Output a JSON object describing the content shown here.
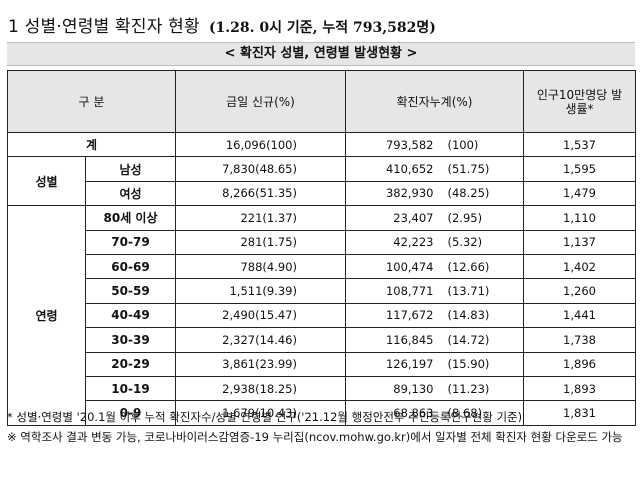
{
  "heading": {
    "main": "1 성별·연령별 확진자 현황",
    "sub": "(1.28. 0시 기준, 누적 793,582명)"
  },
  "band_title": "< 확진자 성별, 연령별 발생현황 >",
  "table": {
    "headers": {
      "category": "구 분",
      "today": "금일 신규(%)",
      "cumulative": "확진자누계(%)",
      "rate": "인구10만명당 발생률*"
    },
    "total": {
      "label": "계",
      "today": "16,096(100)",
      "cum_count": "793,582",
      "cum_pct": "(100)",
      "rate": "1,537"
    },
    "sex_group": "성별",
    "sex_rows": [
      {
        "label": "남성",
        "today": "7,830(48.65)",
        "cum_count": "410,652",
        "cum_pct": "(51.75)",
        "rate": "1,595"
      },
      {
        "label": "여성",
        "today": "8,266(51.35)",
        "cum_count": "382,930",
        "cum_pct": "(48.25)",
        "rate": "1,479"
      }
    ],
    "age_group": "연령",
    "age_rows": [
      {
        "label": "80세 이상",
        "today": "221(1.37)",
        "cum_count": "23,407",
        "cum_pct": "(2.95)",
        "rate": "1,110"
      },
      {
        "label": "70-79",
        "today": "281(1.75)",
        "cum_count": "42,223",
        "cum_pct": "(5.32)",
        "rate": "1,137"
      },
      {
        "label": "60-69",
        "today": "788(4.90)",
        "cum_count": "100,474",
        "cum_pct": "(12.66)",
        "rate": "1,402"
      },
      {
        "label": "50-59",
        "today": "1,511(9.39)",
        "cum_count": "108,771",
        "cum_pct": "(13.71)",
        "rate": "1,260"
      },
      {
        "label": "40-49",
        "today": "2,490(15.47)",
        "cum_count": "117,672",
        "cum_pct": "(14.83)",
        "rate": "1,441"
      },
      {
        "label": "30-39",
        "today": "2,327(14.46)",
        "cum_count": "116,845",
        "cum_pct": "(14.72)",
        "rate": "1,738"
      },
      {
        "label": "20-29",
        "today": "3,861(23.99)",
        "cum_count": "126,197",
        "cum_pct": "(15.90)",
        "rate": "1,896"
      },
      {
        "label": "10-19",
        "today": "2,938(18.25)",
        "cum_count": "89,130",
        "cum_pct": "(11.23)",
        "rate": "1,893"
      },
      {
        "label": "0-9",
        "today": "1,679(10.43)",
        "cum_count": "68,863",
        "cum_pct": "(8.68)",
        "rate": "1,831"
      }
    ]
  },
  "notes": [
    "* 성별·연령별 '20.1월 이후 누적 확진자수/성별·연령별 인구('21.12월 행정안전부 주민등록인구현황 기준)",
    "※ 역학조사 결과 변동 가능, 코로나바이러스감염증-19 누리집(ncov.mohw.go.kr)에서 일자별 전체 확진자 현황 다운로드 가능"
  ],
  "colors": {
    "header_bg": "#e6e6e6",
    "border": "#222222"
  }
}
